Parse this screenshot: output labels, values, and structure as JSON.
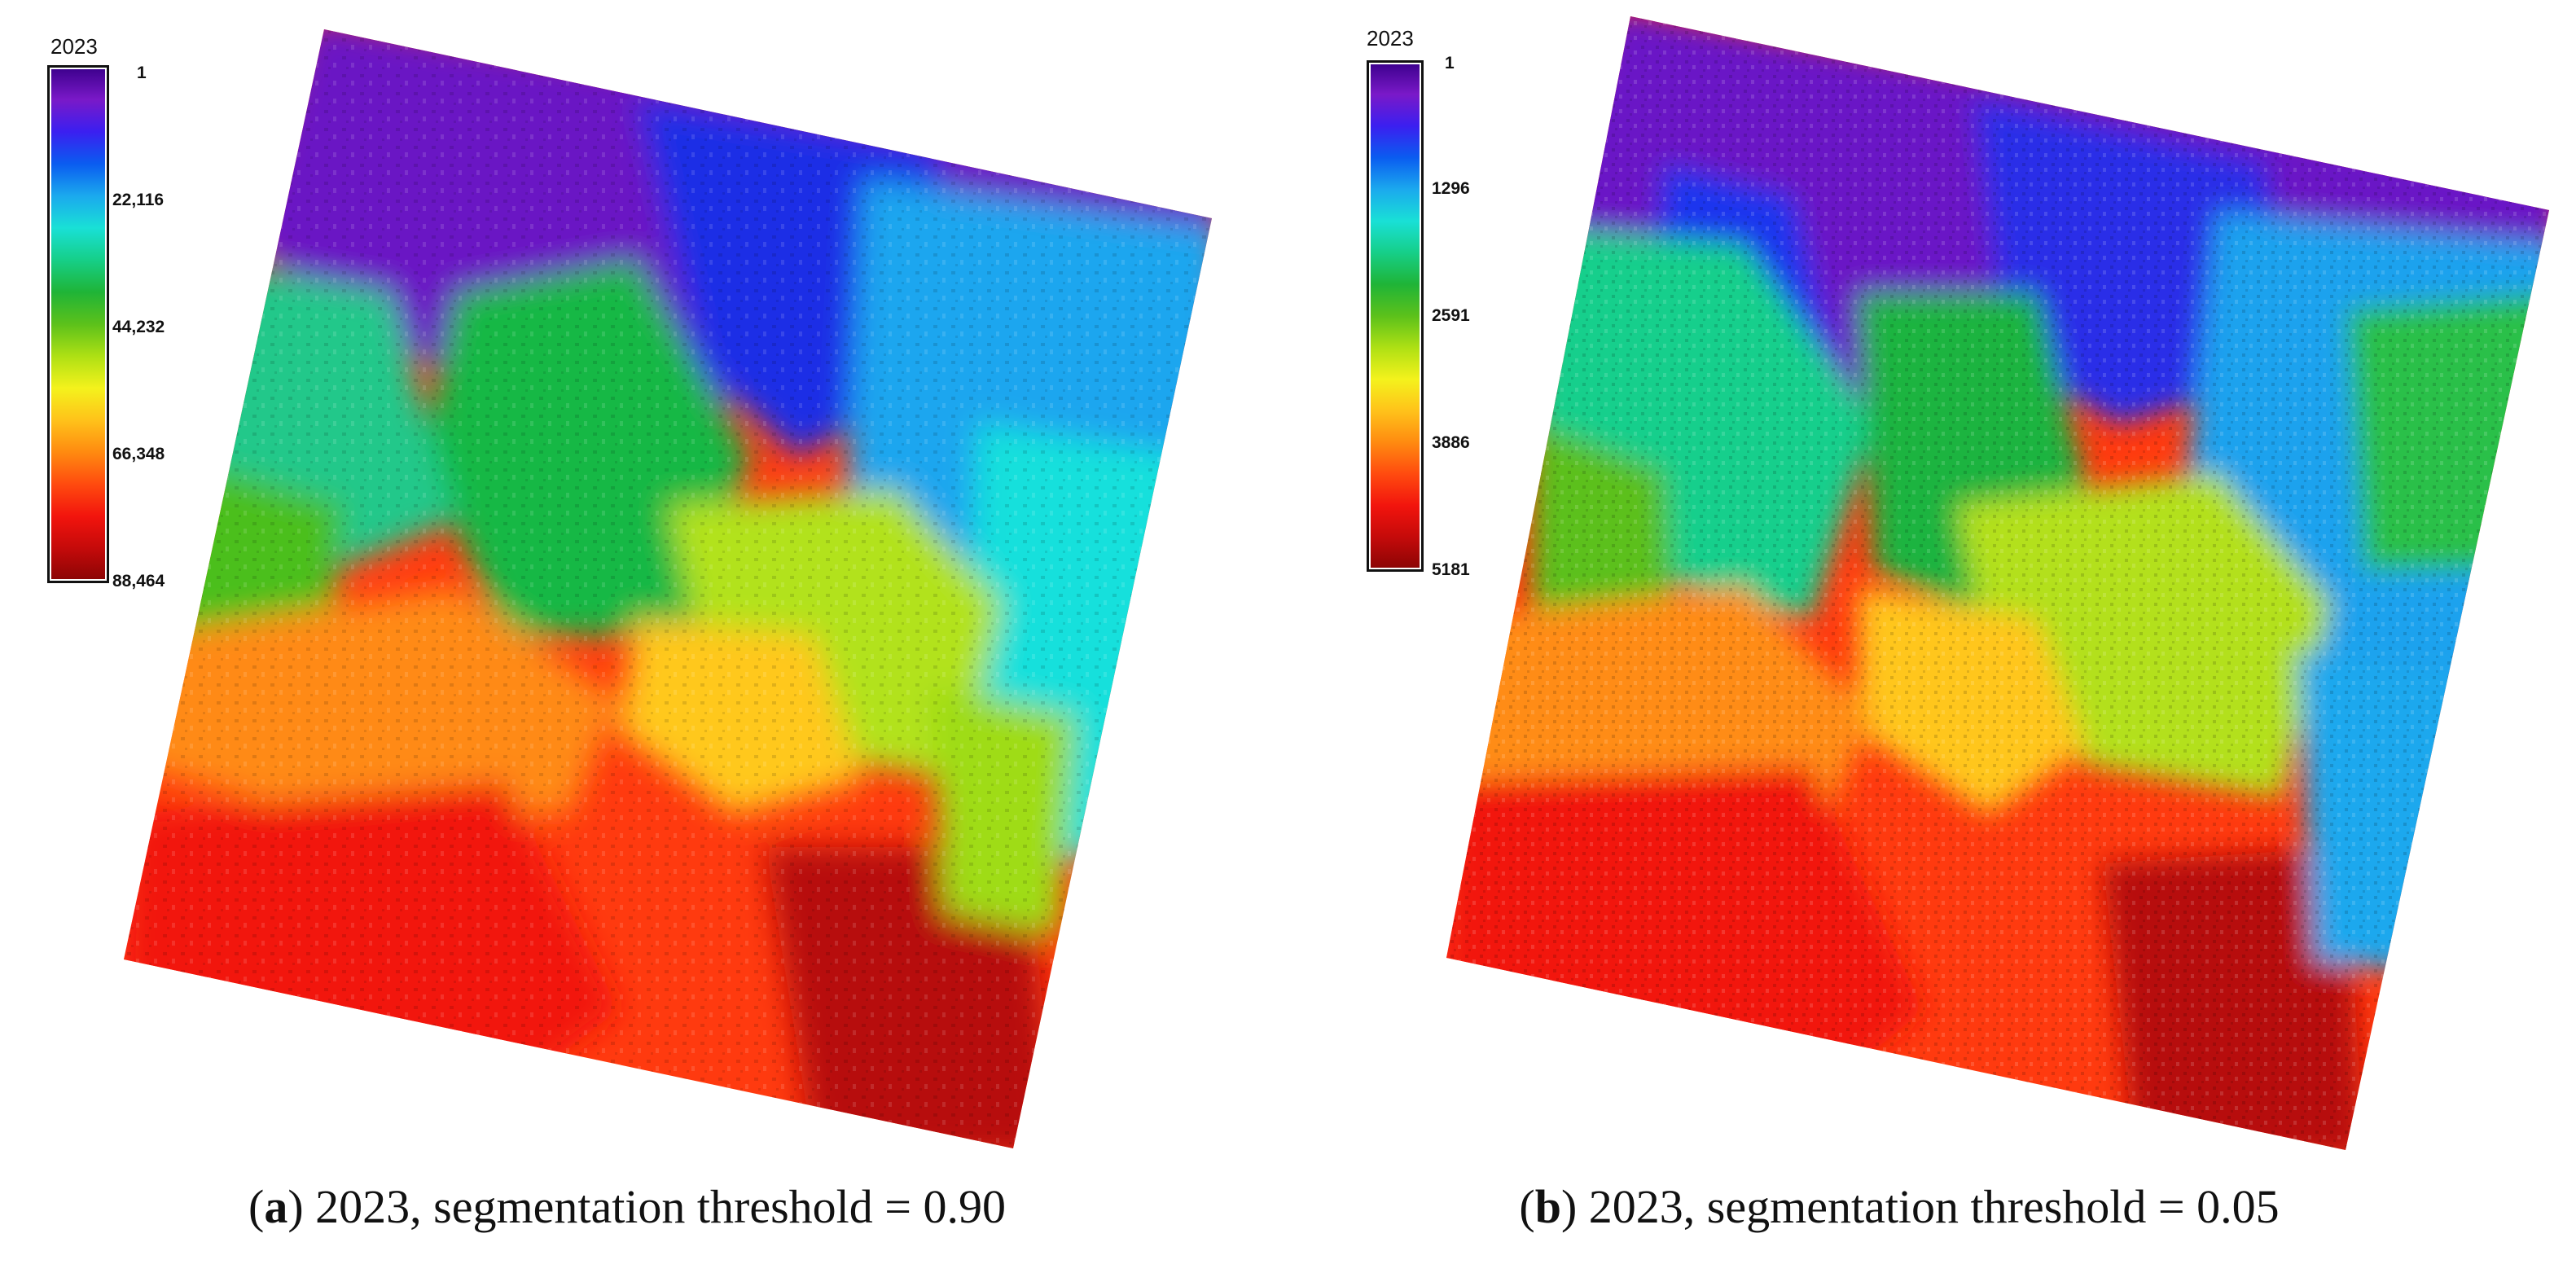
{
  "panels": [
    {
      "id": "a",
      "legend": {
        "title": "2023",
        "ticks": [
          "1",
          "22,116",
          "44,232",
          "66,348",
          "88,464"
        ]
      },
      "caption": {
        "letter": "a",
        "text": ") 2023, segmentation threshold = 0.90"
      }
    },
    {
      "id": "b",
      "legend": {
        "title": "2023",
        "ticks": [
          "1",
          "1296",
          "2591",
          "3886",
          "5181"
        ]
      },
      "caption": {
        "letter": "b",
        "text": ") 2023, segmentation threshold = 0.05"
      }
    }
  ],
  "colormap": [
    "#3b008c",
    "#7a19c8",
    "#3b1ff0",
    "#0a5cf0",
    "#1ba9ee",
    "#19e0d6",
    "#16cf88",
    "#1fb437",
    "#5cc11b",
    "#aee014",
    "#f4f21c",
    "#ffc21a",
    "#ff8a10",
    "#ff4a0f",
    "#f2140d",
    "#c40a0a",
    "#8a0505"
  ]
}
